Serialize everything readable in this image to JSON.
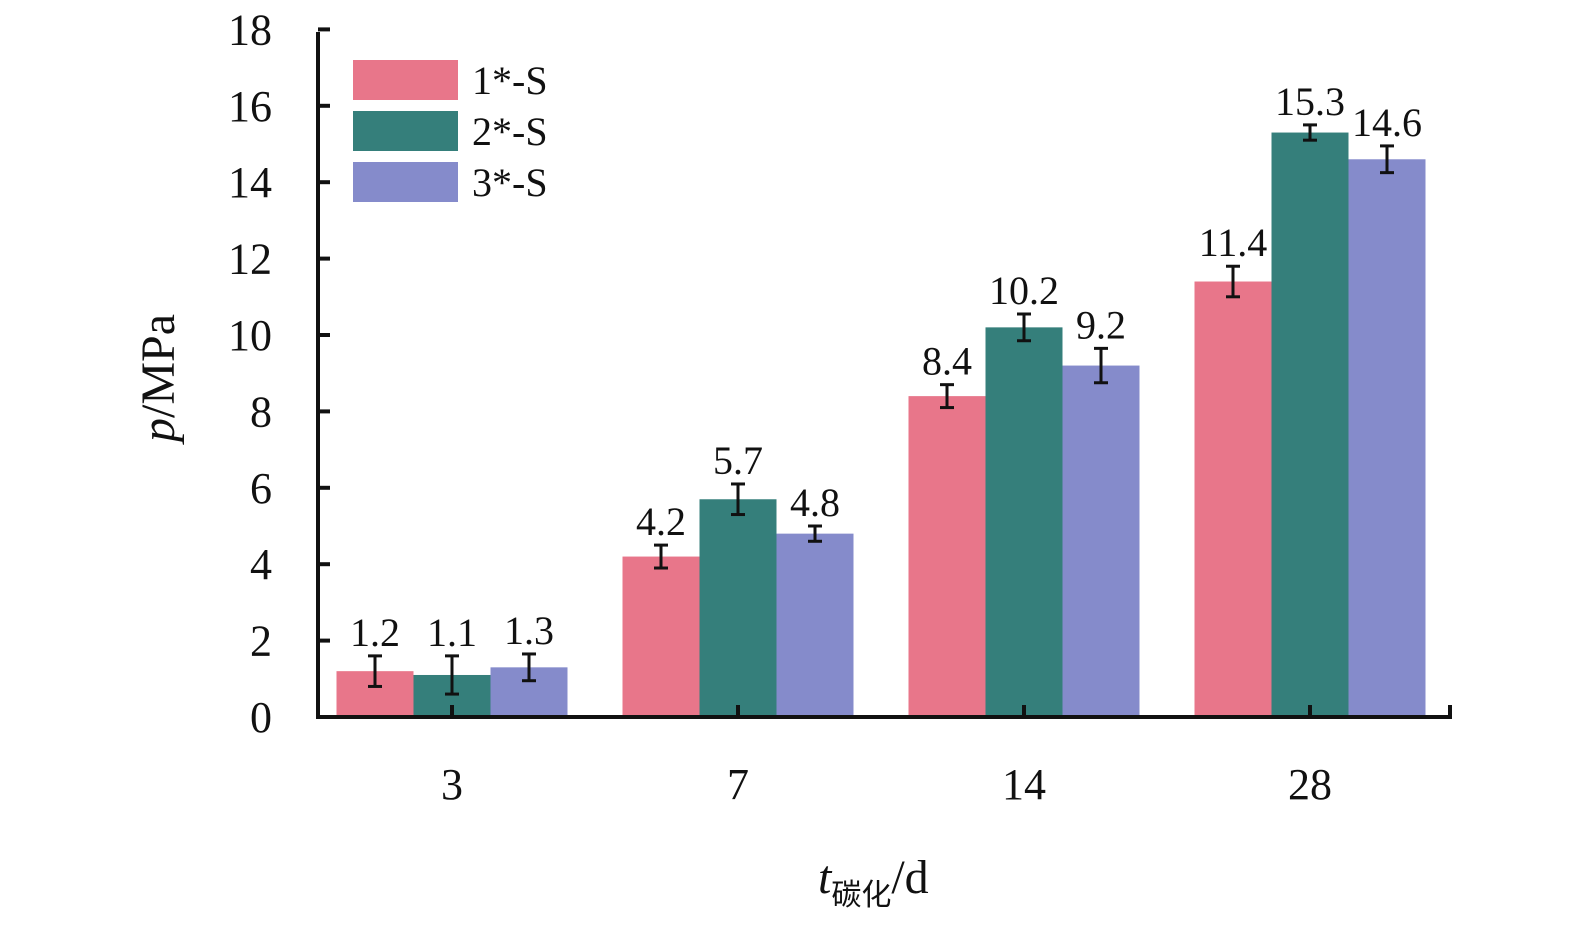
{
  "chart_data": {
    "type": "bar",
    "categories": [
      "3",
      "7",
      "14",
      "28"
    ],
    "series": [
      {
        "name": "1*-S",
        "color": "#E8768A",
        "values": [
          1.2,
          4.2,
          8.4,
          11.4
        ],
        "errors": [
          0.4,
          0.3,
          0.3,
          0.4
        ]
      },
      {
        "name": "2*-S",
        "color": "#357F7B",
        "values": [
          1.1,
          5.7,
          10.2,
          15.3
        ],
        "errors": [
          0.5,
          0.4,
          0.35,
          0.2
        ]
      },
      {
        "name": "3*-S",
        "color": "#858BCB",
        "values": [
          1.3,
          4.8,
          9.2,
          14.6
        ],
        "errors": [
          0.35,
          0.2,
          0.45,
          0.35
        ]
      }
    ],
    "data_labels": [
      [
        "1.2",
        "4.2",
        "8.4",
        "11.4"
      ],
      [
        "1.1",
        "5.7",
        "10.2",
        "15.3"
      ],
      [
        "1.3",
        "4.8",
        "9.2",
        "14.6"
      ]
    ],
    "y_ticks": [
      "0",
      "2",
      "4",
      "6",
      "8",
      "10",
      "12",
      "14",
      "16",
      "18"
    ],
    "ylim": [
      0,
      18
    ],
    "ylabel": {
      "var": "p",
      "rest": "/MPa"
    },
    "xlabel": {
      "var": "t",
      "sub": "碳化",
      "rest": "/d"
    },
    "legend_position": "top-left",
    "error_bars": true,
    "grid": false
  }
}
